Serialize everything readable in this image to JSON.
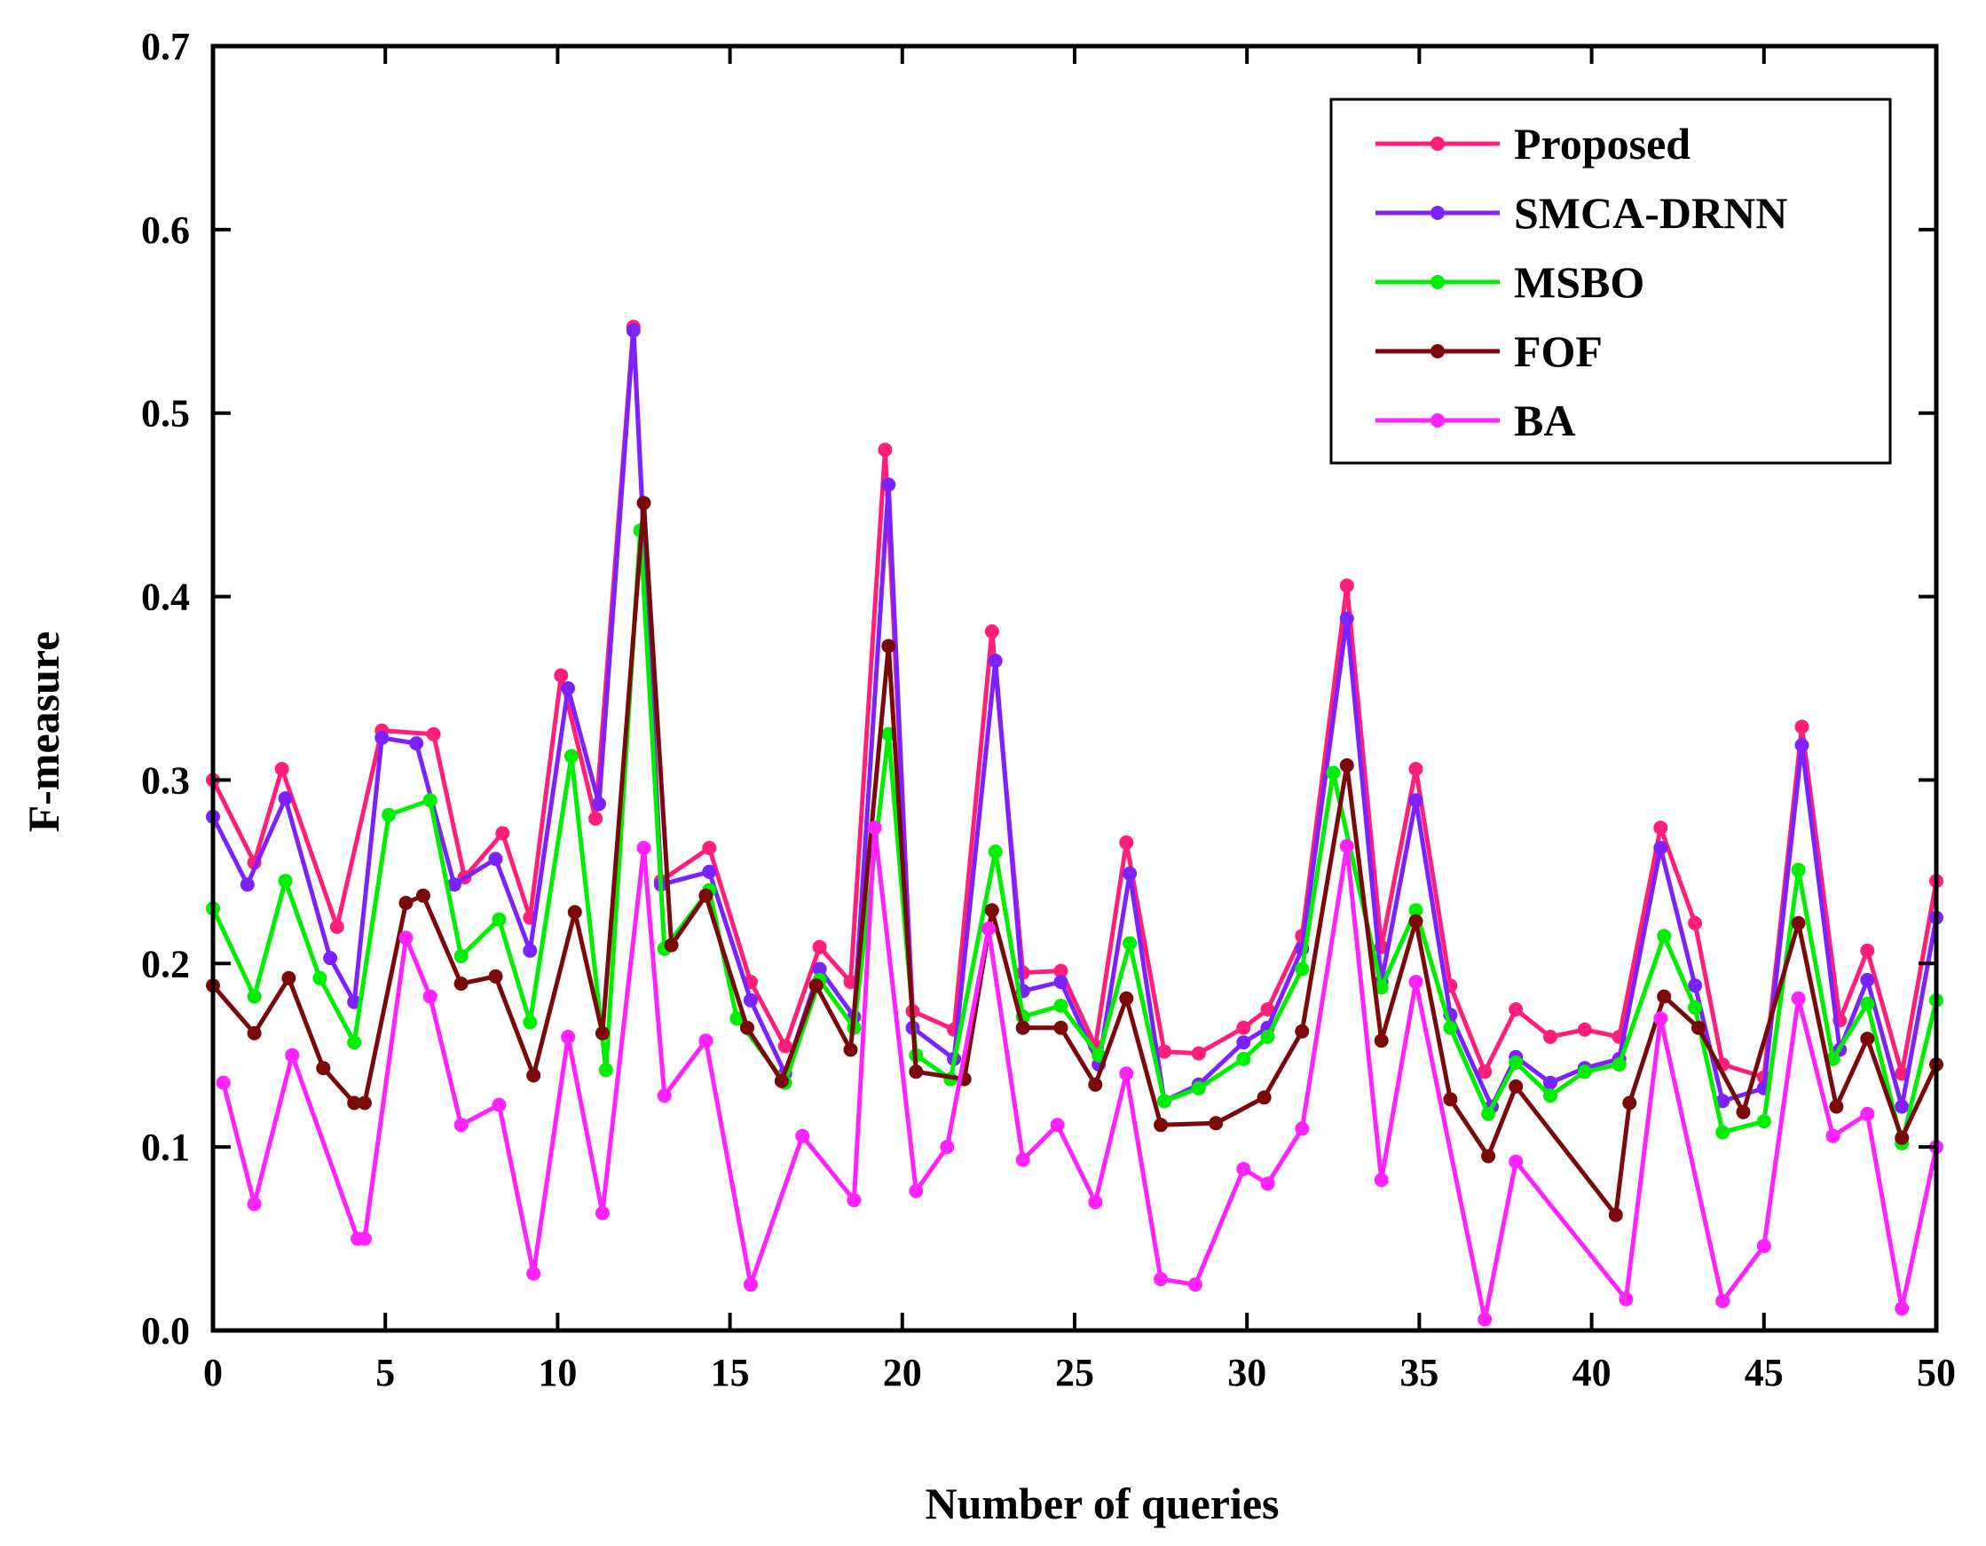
{
  "chart_data": {
    "type": "line",
    "xlabel": "Number of queries",
    "ylabel": "F-measure",
    "xlim": [
      0,
      50
    ],
    "ylim": [
      0,
      0.7
    ],
    "xticks": [
      0,
      5,
      10,
      15,
      20,
      25,
      30,
      35,
      40,
      45,
      50
    ],
    "yticks": [
      "0.0",
      "0.1",
      "0.2",
      "0.3",
      "0.4",
      "0.5",
      "0.6",
      "0.7"
    ],
    "grid": false,
    "legend_position": "top-right",
    "series": [
      {
        "name": "Proposed",
        "color": "#ff1f7a",
        "points": [
          [
            0,
            0.3
          ],
          [
            1.2,
            0.255
          ],
          [
            2.0,
            0.306
          ],
          [
            3.6,
            0.22
          ],
          [
            4.9,
            0.327
          ],
          [
            6.4,
            0.325
          ],
          [
            7.3,
            0.247
          ],
          [
            8.4,
            0.271
          ],
          [
            9.2,
            0.225
          ],
          [
            10.1,
            0.357
          ],
          [
            11.1,
            0.279
          ],
          [
            12.2,
            0.547
          ],
          [
            13.0,
            0.245
          ],
          [
            14.4,
            0.263
          ],
          [
            15.6,
            0.19
          ],
          [
            16.6,
            0.155
          ],
          [
            17.6,
            0.209
          ],
          [
            18.5,
            0.19
          ],
          [
            19.5,
            0.48
          ],
          [
            20.3,
            0.174
          ],
          [
            21.5,
            0.164
          ],
          [
            22.6,
            0.381
          ],
          [
            23.5,
            0.195
          ],
          [
            24.6,
            0.196
          ],
          [
            25.6,
            0.155
          ],
          [
            26.5,
            0.266
          ],
          [
            27.6,
            0.152
          ],
          [
            28.6,
            0.151
          ],
          [
            29.9,
            0.165
          ],
          [
            30.6,
            0.175
          ],
          [
            31.6,
            0.215
          ],
          [
            32.9,
            0.406
          ],
          [
            33.9,
            0.209
          ],
          [
            34.9,
            0.306
          ],
          [
            35.9,
            0.188
          ],
          [
            36.9,
            0.141
          ],
          [
            37.8,
            0.175
          ],
          [
            38.8,
            0.16
          ],
          [
            39.8,
            0.164
          ],
          [
            40.8,
            0.16
          ],
          [
            42.0,
            0.274
          ],
          [
            43.0,
            0.222
          ],
          [
            43.8,
            0.145
          ],
          [
            45.0,
            0.138
          ],
          [
            46.1,
            0.329
          ],
          [
            47.2,
            0.169
          ],
          [
            48.0,
            0.207
          ],
          [
            49.0,
            0.14
          ],
          [
            50,
            0.245
          ]
        ]
      },
      {
        "name": "SMCA-DRNN",
        "color": "#7b22ff",
        "points": [
          [
            0,
            0.28
          ],
          [
            1.0,
            0.243
          ],
          [
            2.1,
            0.29
          ],
          [
            3.4,
            0.203
          ],
          [
            4.1,
            0.179
          ],
          [
            4.9,
            0.323
          ],
          [
            5.9,
            0.32
          ],
          [
            7.0,
            0.243
          ],
          [
            8.2,
            0.257
          ],
          [
            9.2,
            0.207
          ],
          [
            10.3,
            0.35
          ],
          [
            11.2,
            0.287
          ],
          [
            12.2,
            0.545
          ],
          [
            13.0,
            0.243
          ],
          [
            14.4,
            0.25
          ],
          [
            15.6,
            0.18
          ],
          [
            16.6,
            0.14
          ],
          [
            17.6,
            0.197
          ],
          [
            18.6,
            0.171
          ],
          [
            19.6,
            0.461
          ],
          [
            20.3,
            0.165
          ],
          [
            21.5,
            0.148
          ],
          [
            22.7,
            0.365
          ],
          [
            23.5,
            0.185
          ],
          [
            24.6,
            0.19
          ],
          [
            25.7,
            0.145
          ],
          [
            26.6,
            0.249
          ],
          [
            27.6,
            0.125
          ],
          [
            28.6,
            0.134
          ],
          [
            29.9,
            0.157
          ],
          [
            30.6,
            0.165
          ],
          [
            31.6,
            0.208
          ],
          [
            32.9,
            0.388
          ],
          [
            33.9,
            0.19
          ],
          [
            34.9,
            0.289
          ],
          [
            35.9,
            0.172
          ],
          [
            37.1,
            0.122
          ],
          [
            37.8,
            0.149
          ],
          [
            38.8,
            0.135
          ],
          [
            39.8,
            0.143
          ],
          [
            40.8,
            0.148
          ],
          [
            42.0,
            0.263
          ],
          [
            43.0,
            0.188
          ],
          [
            43.8,
            0.125
          ],
          [
            45.0,
            0.132
          ],
          [
            46.1,
            0.319
          ],
          [
            47.2,
            0.153
          ],
          [
            48.0,
            0.191
          ],
          [
            49.0,
            0.122
          ],
          [
            50,
            0.225
          ]
        ]
      },
      {
        "name": "MSBO",
        "color": "#00ee00",
        "points": [
          [
            0,
            0.23
          ],
          [
            1.2,
            0.182
          ],
          [
            2.1,
            0.245
          ],
          [
            3.1,
            0.192
          ],
          [
            4.1,
            0.157
          ],
          [
            5.1,
            0.281
          ],
          [
            6.3,
            0.289
          ],
          [
            7.2,
            0.204
          ],
          [
            8.3,
            0.224
          ],
          [
            9.2,
            0.168
          ],
          [
            10.4,
            0.313
          ],
          [
            11.4,
            0.142
          ],
          [
            12.4,
            0.436
          ],
          [
            13.1,
            0.208
          ],
          [
            14.4,
            0.24
          ],
          [
            15.2,
            0.17
          ],
          [
            16.6,
            0.135
          ],
          [
            17.6,
            0.191
          ],
          [
            18.6,
            0.165
          ],
          [
            19.6,
            0.325
          ],
          [
            20.4,
            0.15
          ],
          [
            21.4,
            0.137
          ],
          [
            22.7,
            0.261
          ],
          [
            23.5,
            0.171
          ],
          [
            24.6,
            0.177
          ],
          [
            25.7,
            0.15
          ],
          [
            26.6,
            0.211
          ],
          [
            27.6,
            0.125
          ],
          [
            28.6,
            0.132
          ],
          [
            29.9,
            0.148
          ],
          [
            30.6,
            0.16
          ],
          [
            31.6,
            0.197
          ],
          [
            32.5,
            0.304
          ],
          [
            33.9,
            0.187
          ],
          [
            34.9,
            0.229
          ],
          [
            35.9,
            0.165
          ],
          [
            37.0,
            0.118
          ],
          [
            37.8,
            0.146
          ],
          [
            38.8,
            0.128
          ],
          [
            39.8,
            0.141
          ],
          [
            40.8,
            0.145
          ],
          [
            42.1,
            0.215
          ],
          [
            43.0,
            0.176
          ],
          [
            43.8,
            0.108
          ],
          [
            45.0,
            0.114
          ],
          [
            46.0,
            0.251
          ],
          [
            47.0,
            0.148
          ],
          [
            48.0,
            0.178
          ],
          [
            49.0,
            0.102
          ],
          [
            50,
            0.18
          ]
        ]
      },
      {
        "name": "FOF",
        "color": "#7a0a0a",
        "points": [
          [
            0,
            0.188
          ],
          [
            1.2,
            0.162
          ],
          [
            2.2,
            0.192
          ],
          [
            3.2,
            0.143
          ],
          [
            4.1,
            0.124
          ],
          [
            4.4,
            0.124
          ],
          [
            5.6,
            0.233
          ],
          [
            6.1,
            0.237
          ],
          [
            7.2,
            0.189
          ],
          [
            8.2,
            0.193
          ],
          [
            9.3,
            0.139
          ],
          [
            10.5,
            0.228
          ],
          [
            11.3,
            0.162
          ],
          [
            12.5,
            0.451
          ],
          [
            13.3,
            0.21
          ],
          [
            14.3,
            0.237
          ],
          [
            15.5,
            0.165
          ],
          [
            16.5,
            0.136
          ],
          [
            17.5,
            0.188
          ],
          [
            18.5,
            0.153
          ],
          [
            19.6,
            0.373
          ],
          [
            20.4,
            0.141
          ],
          [
            21.8,
            0.137
          ],
          [
            22.6,
            0.229
          ],
          [
            23.5,
            0.165
          ],
          [
            24.6,
            0.165
          ],
          [
            25.6,
            0.134
          ],
          [
            26.5,
            0.181
          ],
          [
            27.5,
            0.112
          ],
          [
            29.1,
            0.113
          ],
          [
            30.5,
            0.127
          ],
          [
            31.6,
            0.163
          ],
          [
            32.9,
            0.308
          ],
          [
            33.9,
            0.158
          ],
          [
            34.9,
            0.223
          ],
          [
            35.9,
            0.126
          ],
          [
            37.0,
            0.095
          ],
          [
            37.8,
            0.133
          ],
          [
            40.7,
            0.063
          ],
          [
            41.1,
            0.124
          ],
          [
            42.1,
            0.182
          ],
          [
            43.1,
            0.165
          ],
          [
            44.4,
            0.119
          ],
          [
            46.0,
            0.222
          ],
          [
            47.1,
            0.122
          ],
          [
            48.0,
            0.159
          ],
          [
            49.0,
            0.105
          ],
          [
            50,
            0.145
          ]
        ]
      },
      {
        "name": "BA",
        "color": "#ff22ff",
        "points": [
          [
            0.3,
            0.135
          ],
          [
            1.2,
            0.069
          ],
          [
            2.3,
            0.15
          ],
          [
            4.2,
            0.05
          ],
          [
            4.4,
            0.05
          ],
          [
            5.6,
            0.214
          ],
          [
            6.3,
            0.182
          ],
          [
            7.2,
            0.112
          ],
          [
            8.3,
            0.123
          ],
          [
            9.3,
            0.031
          ],
          [
            10.3,
            0.16
          ],
          [
            11.3,
            0.064
          ],
          [
            12.5,
            0.263
          ],
          [
            13.1,
            0.128
          ],
          [
            14.3,
            0.158
          ],
          [
            15.6,
            0.025
          ],
          [
            17.1,
            0.106
          ],
          [
            18.6,
            0.071
          ],
          [
            19.2,
            0.274
          ],
          [
            20.4,
            0.076
          ],
          [
            21.3,
            0.1
          ],
          [
            22.5,
            0.219
          ],
          [
            23.5,
            0.093
          ],
          [
            24.5,
            0.112
          ],
          [
            25.6,
            0.07
          ],
          [
            26.5,
            0.14
          ],
          [
            27.5,
            0.028
          ],
          [
            28.5,
            0.025
          ],
          [
            29.9,
            0.088
          ],
          [
            30.6,
            0.08
          ],
          [
            31.6,
            0.11
          ],
          [
            32.9,
            0.264
          ],
          [
            33.9,
            0.082
          ],
          [
            34.9,
            0.19
          ],
          [
            36.9,
            0.006
          ],
          [
            37.8,
            0.092
          ],
          [
            41.0,
            0.017
          ],
          [
            42.0,
            0.17
          ],
          [
            43.8,
            0.016
          ],
          [
            45.0,
            0.046
          ],
          [
            46.0,
            0.181
          ],
          [
            47.0,
            0.106
          ],
          [
            48.0,
            0.118
          ],
          [
            49.0,
            0.012
          ],
          [
            50,
            0.1
          ]
        ]
      }
    ]
  }
}
